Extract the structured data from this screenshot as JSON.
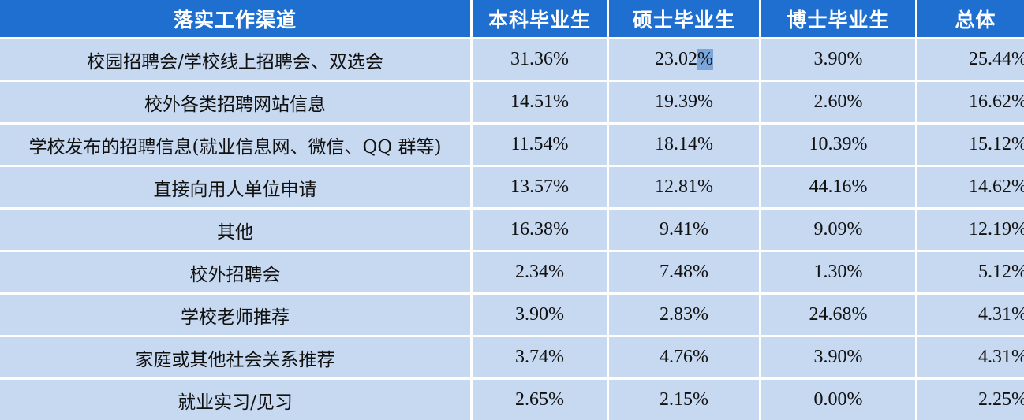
{
  "table": {
    "headers": [
      "落实工作渠道",
      "本科毕业生",
      "硕士毕业生",
      "博士毕业生",
      "总体"
    ],
    "rows": [
      {
        "channel": "校园招聘会/学校线上招聘会、双选会",
        "bachelor": "31.36%",
        "master_main": "23.02",
        "master_sel": "%",
        "doctor": "3.90%",
        "total": "25.44%"
      },
      {
        "channel": "校外各类招聘网站信息",
        "bachelor": "14.51%",
        "master": "19.39%",
        "doctor": "2.60%",
        "total": "16.62%"
      },
      {
        "channel": "学校发布的招聘信息(就业信息网、微信、QQ 群等)",
        "bachelor": "11.54%",
        "master": "18.14%",
        "doctor": "10.39%",
        "total": "15.12%"
      },
      {
        "channel": "直接向用人单位申请",
        "bachelor": "13.57%",
        "master": "12.81%",
        "doctor": "44.16%",
        "total": "14.62%"
      },
      {
        "channel": "其他",
        "bachelor": "16.38%",
        "master": "9.41%",
        "doctor": "9.09%",
        "total": "12.19%"
      },
      {
        "channel": "校外招聘会",
        "bachelor": "2.34%",
        "master": "7.48%",
        "doctor": "1.30%",
        "total": "5.12%"
      },
      {
        "channel": "学校老师推荐",
        "bachelor": "3.90%",
        "master": "2.83%",
        "doctor": "24.68%",
        "total": "4.31%"
      },
      {
        "channel": "家庭或其他社会关系推荐",
        "bachelor": "3.74%",
        "master": "4.76%",
        "doctor": "3.90%",
        "total": "4.31%"
      },
      {
        "channel": "就业实习/见习",
        "bachelor": "2.65%",
        "master": "2.15%",
        "doctor": "0.00%",
        "total": "2.25%"
      }
    ]
  },
  "colors": {
    "header_bg": "#1f6fd0",
    "row_bg": "#c6d9f1",
    "selection_highlight": "#7aa6dc"
  }
}
